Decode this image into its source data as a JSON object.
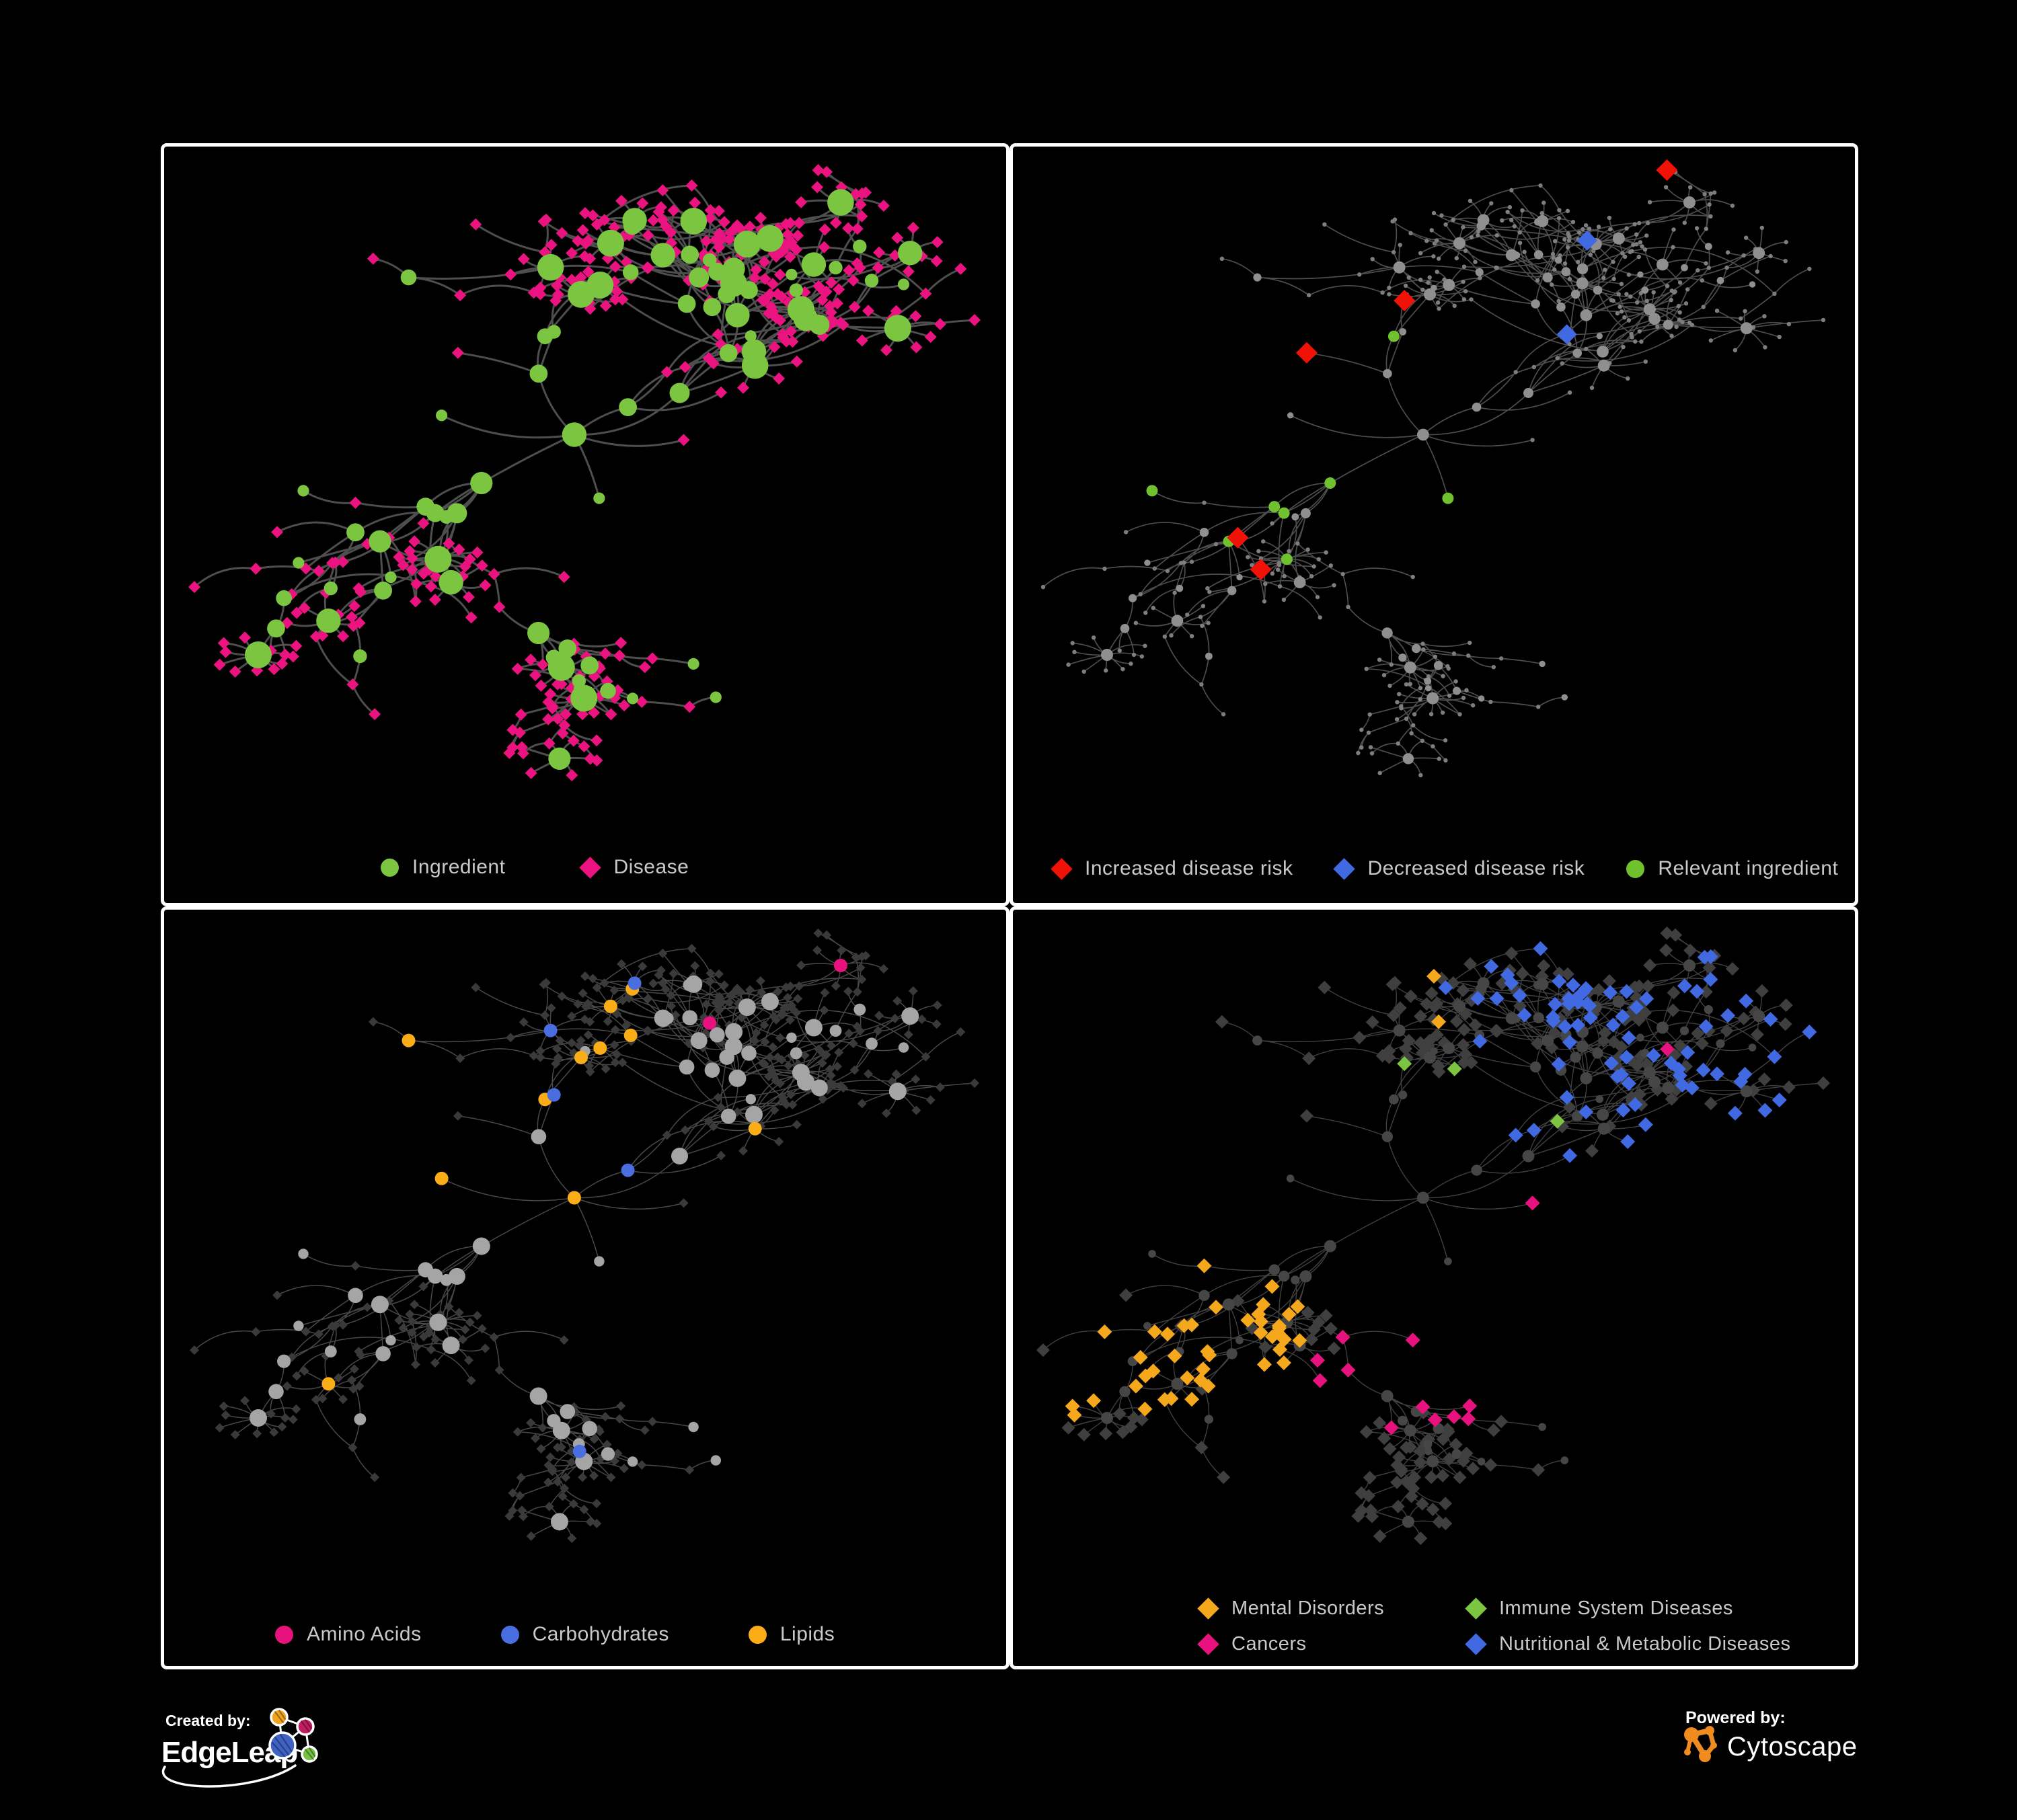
{
  "page": {
    "background": "#000000",
    "panel_border": "#ffffff"
  },
  "network": {
    "seed": 1337,
    "node_count": 430,
    "root_branches": 6,
    "burst_prob": 0.1,
    "burst_min": 5,
    "burst_max": 16,
    "cross_links": 24,
    "fit": [
      45,
      35,
      1205,
      935
    ]
  },
  "panels": [
    {
      "id": "ingredient-disease",
      "legend": [
        {
          "shape": "circle",
          "color": "#7CC540",
          "label": "Ingredient"
        },
        {
          "shape": "diamond",
          "color": "#EA1380",
          "label": "Disease"
        }
      ],
      "style": {
        "edge": {
          "color": "#646464",
          "width": 3.0,
          "opacity": 0.78
        },
        "nodes": {
          "ingredient": {
            "shape": "circle",
            "color": "#7CC540",
            "rMin": 7,
            "rDeg": 1.6,
            "rMax": 20
          },
          "disease": {
            "shape": "diamond",
            "color": "#EA1380",
            "r": 9
          }
        }
      }
    },
    {
      "id": "disease-risk",
      "legend": [
        {
          "shape": "diamond",
          "color": "#F01107",
          "label": "Increased disease risk"
        },
        {
          "shape": "diamond",
          "color": "#4169E1",
          "label": "Decreased disease risk"
        },
        {
          "shape": "circle",
          "color": "#6FC22E",
          "label": "Relevant ingredient"
        }
      ],
      "style": {
        "edge": {
          "color": "#5A5A5A",
          "width": 1.7,
          "opacity": 0.85
        },
        "nodes": {
          "ingredient": {
            "shape": "circle",
            "color": "#8F8F8F",
            "rMin": 4,
            "rDeg": 0.7,
            "rMax": 9
          },
          "disease": {
            "shape": "circle",
            "color": "#7E7E7E",
            "r": 3.2
          }
        },
        "highlights": [
          {
            "name": "increased-risk",
            "shape": "diamond",
            "color": "#F01107",
            "r": 16,
            "target": "disease",
            "region": [
              0.03,
              0.2,
              0.52,
              0.64
            ],
            "p": 0.2,
            "pGlobal": 0.008
          },
          {
            "name": "decreased-risk",
            "shape": "diamond",
            "color": "#4169E1",
            "r": 15,
            "target": "disease",
            "region": [
              0.08,
              0.22,
              0.42,
              0.55
            ],
            "p": 0.045,
            "pGlobal": 0.006
          },
          {
            "name": "neutral-association",
            "shape": "diamond",
            "color": "#B5B5B5",
            "r": 14,
            "target": "disease",
            "region": [
              0.06,
              0.22,
              0.5,
              0.62
            ],
            "p": 0.05,
            "pGlobal": 0.001
          },
          {
            "name": "relevant-ingredient",
            "shape": "circle",
            "color": "#6FC22E",
            "r": 8.5,
            "target": "ingredient",
            "region": [
              0.03,
              0.2,
              0.55,
              0.66
            ],
            "p": 0.25,
            "pGlobal": 0.014
          }
        ]
      }
    },
    {
      "id": "nutrient-categories",
      "legend": [
        {
          "shape": "circle",
          "color": "#E8127E",
          "label": "Amino Acids"
        },
        {
          "shape": "circle",
          "color": "#4A6EE0",
          "label": "Carbohydrates"
        },
        {
          "shape": "circle",
          "color": "#FBAD18",
          "label": "Lipids"
        }
      ],
      "style": {
        "edge": {
          "color": "#8F8F8F",
          "width": 1.5,
          "opacity": 0.5
        },
        "nodes": {
          "ingredient": {
            "shape": "circle",
            "color": "#A5A5A5",
            "rMin": 6.5,
            "rDeg": 1.2,
            "rMax": 13
          },
          "disease": {
            "shape": "diamond",
            "color": "#3A3A3A",
            "r": 7
          }
        },
        "highlights": [
          {
            "name": "carbohydrates",
            "shape": "circle",
            "color": "#4A6EE0",
            "r": 10,
            "target": "ingredient",
            "region": [
              0.2,
              0.08,
              0.6,
              0.45
            ],
            "p": 0.18,
            "pGlobal": 0.01
          },
          {
            "name": "lipids",
            "shape": "circle",
            "color": "#FBAD18",
            "r": 10,
            "target": "ingredient",
            "region": [
              0.2,
              0.08,
              0.6,
              0.45
            ],
            "p": 0.55,
            "pGlobal": 0.06
          },
          {
            "name": "amino-acids",
            "shape": "circle",
            "color": "#E8127E",
            "r": 10,
            "target": "ingredient",
            "region": [
              0.0,
              0.4,
              1.0,
              1.0
            ],
            "p": 0.07,
            "pGlobal": 0.05
          }
        ]
      }
    },
    {
      "id": "disease-categories",
      "legend": [
        {
          "shape": "diamond",
          "color": "#F5A81C",
          "label": "Mental Disorders"
        },
        {
          "shape": "diamond",
          "color": "#7CC540",
          "label": "Immune System Diseases"
        },
        {
          "shape": "diamond",
          "color": "#E8127E",
          "label": "Cancers"
        },
        {
          "shape": "diamond",
          "color": "#4169E1",
          "label": "Nutritional & Metabolic Diseases"
        }
      ],
      "style": {
        "edge": {
          "color": "#757575",
          "width": 1.4,
          "opacity": 0.55
        },
        "nodes": {
          "ingredient": {
            "shape": "circle",
            "color": "#464646",
            "rMin": 5,
            "rDeg": 0.8,
            "rMax": 9
          },
          "disease": {
            "shape": "diamond",
            "color": "#3F3F3F",
            "r": 10
          }
        },
        "highlights": [
          {
            "name": "mental-disorders",
            "shape": "diamond",
            "color": "#F5A81C",
            "r": 11,
            "target": "disease",
            "region": [
              0.02,
              0.25,
              0.33,
              0.8
            ],
            "p": 0.85,
            "pGlobal": 0.003
          },
          {
            "name": "immune-system-diseases",
            "shape": "diamond",
            "color": "#7CC540",
            "r": 11,
            "target": "disease",
            "region": [
              0.3,
              0.2,
              0.7,
              0.65
            ],
            "p": 0.05,
            "pGlobal": 0.002
          },
          {
            "name": "cancers",
            "shape": "diamond",
            "color": "#E8127E",
            "r": 11,
            "target": "disease",
            "region": [
              0.34,
              0.35,
              0.65,
              0.82
            ],
            "p": 0.5,
            "pGlobal": 0.004
          },
          {
            "name": "nutritional-metabolic-diseases",
            "shape": "diamond",
            "color": "#4169E1",
            "r": 11,
            "target": "disease",
            "region": [
              0.55,
              0.02,
              1.0,
              0.7
            ],
            "p": 0.42,
            "pGlobal": 0.02
          }
        ]
      }
    }
  ],
  "footer": {
    "created_by": {
      "label": "Created by:",
      "brand": "EdgeLeap"
    },
    "powered_by": {
      "label": "Powered by:",
      "brand": "Cytoscape"
    },
    "edgeleap_colors": {
      "orange": "#F0A41F",
      "pink": "#C21E62",
      "blue": "#3F62C4",
      "green": "#76C043"
    },
    "cytoscape_color": "#EF8B1F",
    "text_color": "#ffffff"
  }
}
